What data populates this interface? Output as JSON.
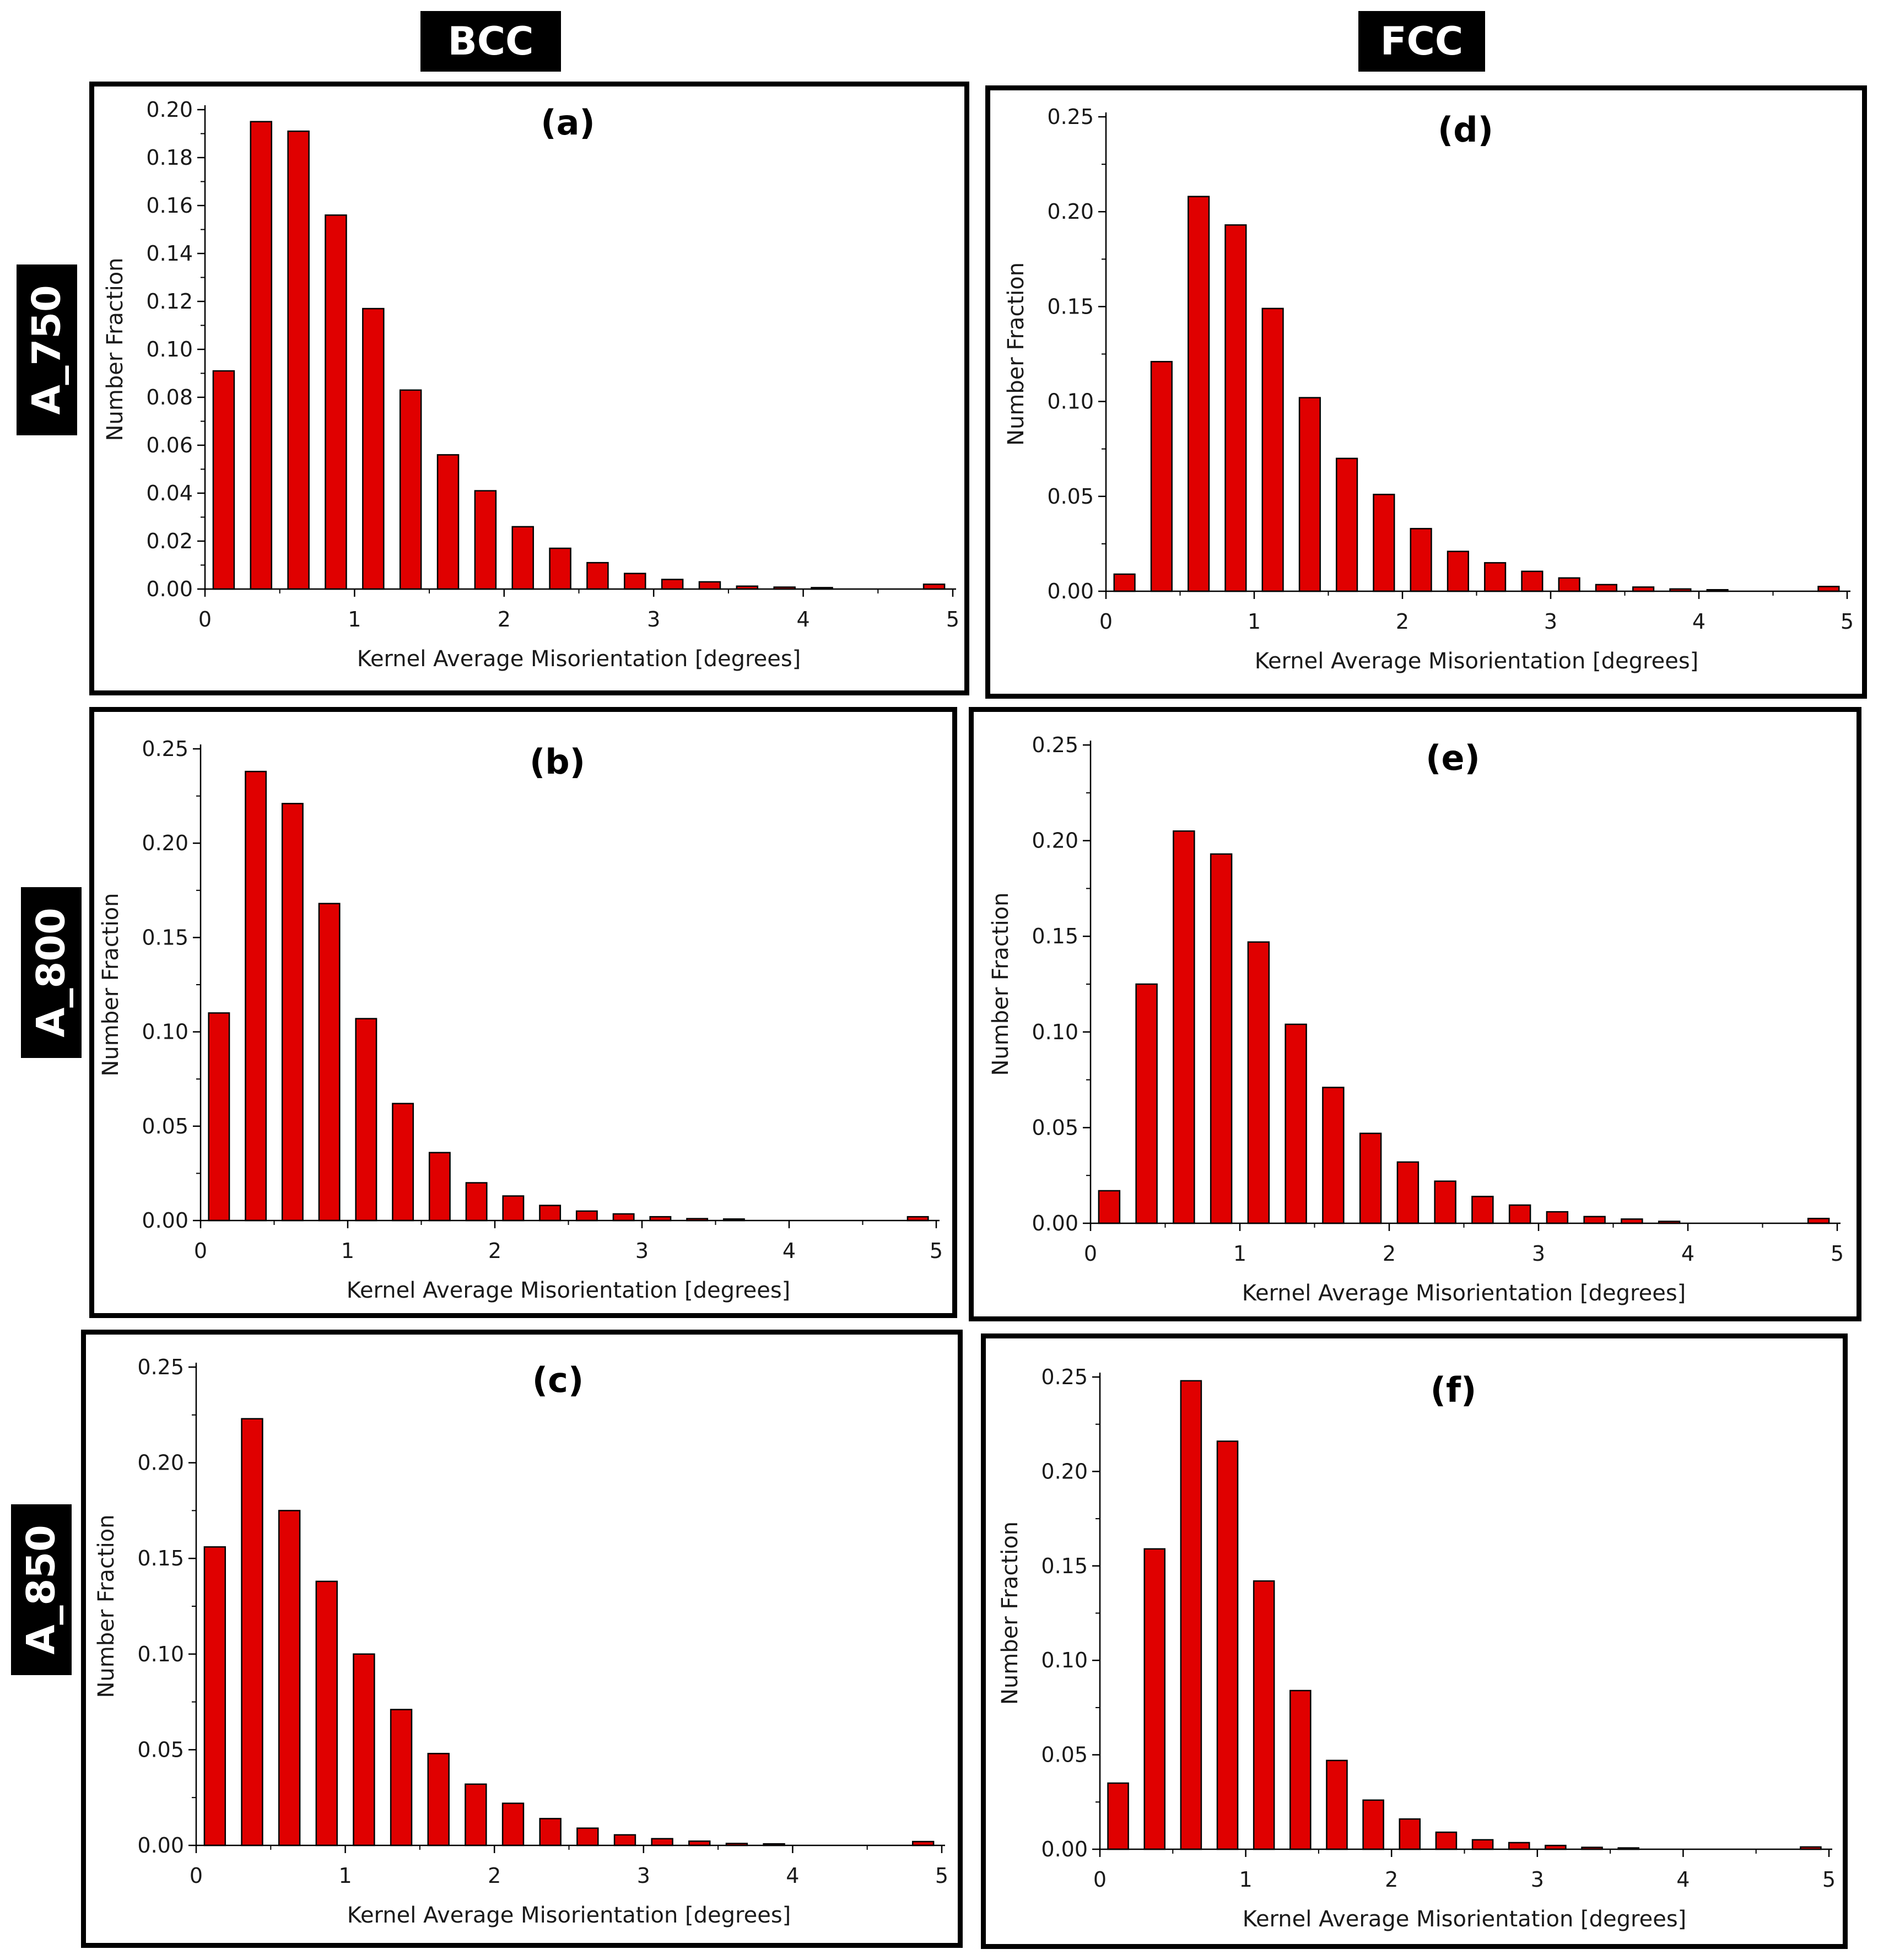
{
  "column_labels": {
    "left": "BCC",
    "right": "FCC"
  },
  "row_labels": {
    "top": "A_750",
    "middle": "A_800",
    "bottom": "A_850"
  },
  "bar_color": "#e00000",
  "chart_data": [
    {
      "id": "a",
      "panel_label": "(a)",
      "type": "bar",
      "xlabel": "Kernel Average Misorientation [degrees]",
      "ylabel": "Number Fraction",
      "xlim": [
        0,
        5
      ],
      "ylim": [
        0,
        0.2
      ],
      "xticks": [
        0,
        1,
        2,
        3,
        4,
        5
      ],
      "yticks": [
        0,
        0.02,
        0.04,
        0.06,
        0.08,
        0.1,
        0.12,
        0.14,
        0.16,
        0.18,
        0.2
      ],
      "ytick_labels": [
        "0.00",
        "0.02",
        "0.04",
        "0.06",
        "0.08",
        "0.10",
        "0.12",
        "0.14",
        "0.16",
        "0.18",
        "0.20"
      ],
      "x": [
        0.125,
        0.375,
        0.625,
        0.875,
        1.125,
        1.375,
        1.625,
        1.875,
        2.125,
        2.375,
        2.625,
        2.875,
        3.125,
        3.375,
        3.625,
        3.875,
        4.125,
        4.875
      ],
      "values": [
        0.091,
        0.195,
        0.191,
        0.156,
        0.117,
        0.083,
        0.056,
        0.041,
        0.026,
        0.017,
        0.011,
        0.0065,
        0.004,
        0.003,
        0.0012,
        0.0008,
        0.0006,
        0.002
      ]
    },
    {
      "id": "b",
      "panel_label": "(b)",
      "type": "bar",
      "xlabel": "Kernel Average Misorientation [degrees]",
      "ylabel": "Number Fraction",
      "xlim": [
        0,
        5
      ],
      "ylim": [
        0,
        0.25
      ],
      "xticks": [
        0,
        1,
        2,
        3,
        4,
        5
      ],
      "yticks": [
        0,
        0.05,
        0.1,
        0.15,
        0.2,
        0.25
      ],
      "ytick_labels": [
        "0.00",
        "0.05",
        "0.10",
        "0.15",
        "0.20",
        "0.25"
      ],
      "x": [
        0.125,
        0.375,
        0.625,
        0.875,
        1.125,
        1.375,
        1.625,
        1.875,
        2.125,
        2.375,
        2.625,
        2.875,
        3.125,
        3.375,
        3.625,
        4.875
      ],
      "values": [
        0.11,
        0.238,
        0.221,
        0.168,
        0.107,
        0.062,
        0.036,
        0.02,
        0.013,
        0.008,
        0.005,
        0.0035,
        0.002,
        0.001,
        0.0008,
        0.002
      ]
    },
    {
      "id": "c",
      "panel_label": "(c)",
      "type": "bar",
      "xlabel": "Kernel Average Misorientation [degrees]",
      "ylabel": "Number Fraction",
      "xlim": [
        0,
        5
      ],
      "ylim": [
        0,
        0.25
      ],
      "xticks": [
        0,
        1,
        2,
        3,
        4,
        5
      ],
      "yticks": [
        0,
        0.05,
        0.1,
        0.15,
        0.2,
        0.25
      ],
      "ytick_labels": [
        "0.00",
        "0.05",
        "0.10",
        "0.15",
        "0.20",
        "0.25"
      ],
      "x": [
        0.125,
        0.375,
        0.625,
        0.875,
        1.125,
        1.375,
        1.625,
        1.875,
        2.125,
        2.375,
        2.625,
        2.875,
        3.125,
        3.375,
        3.625,
        3.875,
        4.875
      ],
      "values": [
        0.156,
        0.223,
        0.175,
        0.138,
        0.1,
        0.071,
        0.048,
        0.032,
        0.022,
        0.014,
        0.009,
        0.0055,
        0.0035,
        0.0022,
        0.001,
        0.0008,
        0.002
      ]
    },
    {
      "id": "d",
      "panel_label": "(d)",
      "type": "bar",
      "xlabel": "Kernel Average Misorientation [degrees]",
      "ylabel": "Number Fraction",
      "xlim": [
        0,
        5
      ],
      "ylim": [
        0,
        0.25
      ],
      "xticks": [
        0,
        1,
        2,
        3,
        4,
        5
      ],
      "yticks": [
        0,
        0.05,
        0.1,
        0.15,
        0.2,
        0.25
      ],
      "ytick_labels": [
        "0.00",
        "0.05",
        "0.10",
        "0.15",
        "0.20",
        "0.25"
      ],
      "x": [
        0.125,
        0.375,
        0.625,
        0.875,
        1.125,
        1.375,
        1.625,
        1.875,
        2.125,
        2.375,
        2.625,
        2.875,
        3.125,
        3.375,
        3.625,
        3.875,
        4.125,
        4.875
      ],
      "values": [
        0.009,
        0.121,
        0.208,
        0.193,
        0.149,
        0.102,
        0.07,
        0.051,
        0.033,
        0.021,
        0.015,
        0.0105,
        0.007,
        0.0035,
        0.0022,
        0.0012,
        0.0008,
        0.0025
      ]
    },
    {
      "id": "e",
      "panel_label": "(e)",
      "type": "bar",
      "xlabel": "Kernel Average Misorientation [degrees]",
      "ylabel": "Number Fraction",
      "xlim": [
        0,
        5
      ],
      "ylim": [
        0,
        0.25
      ],
      "xticks": [
        0,
        1,
        2,
        3,
        4,
        5
      ],
      "yticks": [
        0,
        0.05,
        0.1,
        0.15,
        0.2,
        0.25
      ],
      "ytick_labels": [
        "0.00",
        "0.05",
        "0.10",
        "0.15",
        "0.20",
        "0.25"
      ],
      "x": [
        0.125,
        0.375,
        0.625,
        0.875,
        1.125,
        1.375,
        1.625,
        1.875,
        2.125,
        2.375,
        2.625,
        2.875,
        3.125,
        3.375,
        3.625,
        3.875,
        4.875
      ],
      "values": [
        0.017,
        0.125,
        0.205,
        0.193,
        0.147,
        0.104,
        0.071,
        0.047,
        0.032,
        0.022,
        0.014,
        0.0095,
        0.006,
        0.0035,
        0.0022,
        0.001,
        0.0025
      ]
    },
    {
      "id": "f",
      "panel_label": "(f)",
      "type": "bar",
      "xlabel": "Kernel Average Misorientation [degrees]",
      "ylabel": "Number Fraction",
      "xlim": [
        0,
        5
      ],
      "ylim": [
        0,
        0.25
      ],
      "xticks": [
        0,
        1,
        2,
        3,
        4,
        5
      ],
      "yticks": [
        0,
        0.05,
        0.1,
        0.15,
        0.2,
        0.25
      ],
      "ytick_labels": [
        "0.00",
        "0.05",
        "0.10",
        "0.15",
        "0.20",
        "0.25"
      ],
      "x": [
        0.125,
        0.375,
        0.625,
        0.875,
        1.125,
        1.375,
        1.625,
        1.875,
        2.125,
        2.375,
        2.625,
        2.875,
        3.125,
        3.375,
        3.625,
        4.875
      ],
      "values": [
        0.035,
        0.159,
        0.248,
        0.216,
        0.142,
        0.084,
        0.047,
        0.026,
        0.016,
        0.009,
        0.005,
        0.0035,
        0.002,
        0.001,
        0.0007,
        0.0012
      ]
    }
  ]
}
